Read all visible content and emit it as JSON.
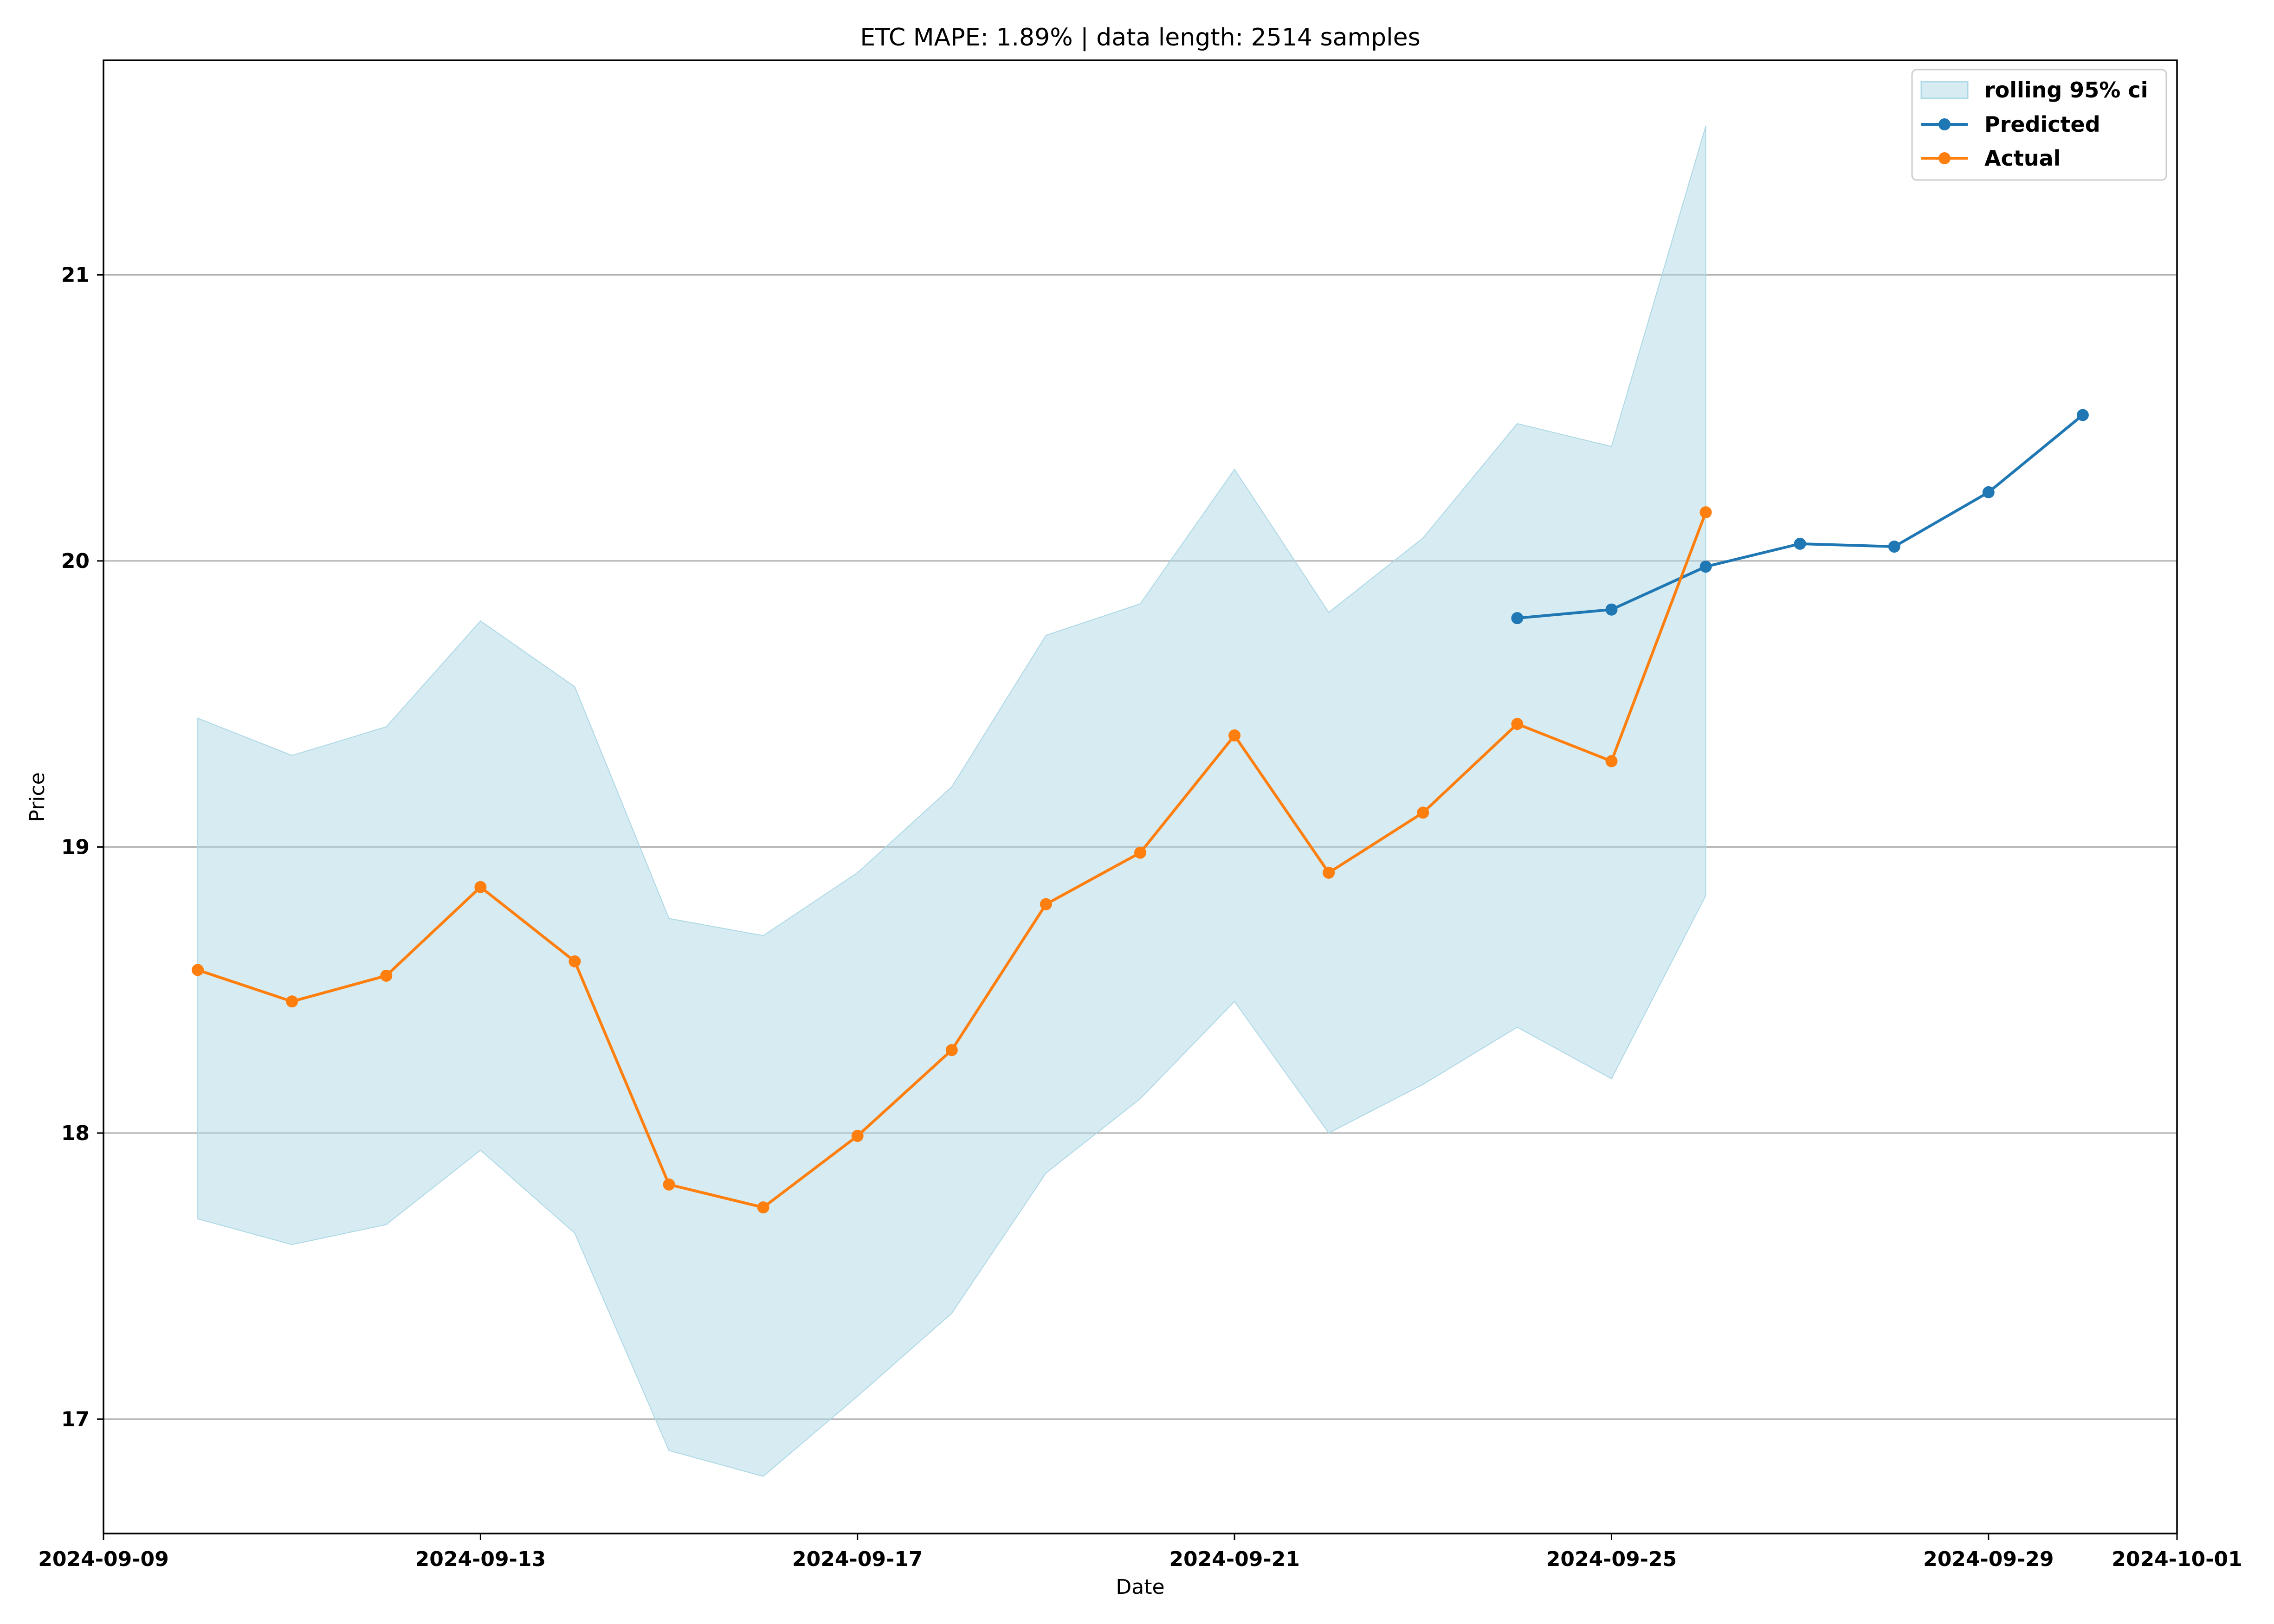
{
  "chart_data": {
    "type": "line",
    "title": "ETC MAPE: 1.89% | data length: 2514 samples",
    "xlabel": "Date",
    "ylabel": "Price",
    "xlim": [
      "2024-09-09",
      "2024-10-01"
    ],
    "ylim": [
      16.6,
      21.75
    ],
    "x_ticks": [
      "2024-09-09",
      "2024-09-13",
      "2024-09-17",
      "2024-09-21",
      "2024-09-25",
      "2024-09-29",
      "2024-10-01"
    ],
    "y_ticks": [
      17,
      18,
      19,
      20,
      21
    ],
    "grid": "horizontal",
    "legend_position": "top-right",
    "colors": {
      "ci": "#add8e6",
      "predicted": "#1f77b4",
      "actual": "#ff7f0e",
      "grid": "#b0b0b0"
    },
    "ci_band": {
      "name": "rolling 95% ci",
      "x": [
        "2024-09-10",
        "2024-09-11",
        "2024-09-12",
        "2024-09-13",
        "2024-09-14",
        "2024-09-15",
        "2024-09-16",
        "2024-09-17",
        "2024-09-18",
        "2024-09-19",
        "2024-09-20",
        "2024-09-21",
        "2024-09-22",
        "2024-09-23",
        "2024-09-24",
        "2024-09-25",
        "2024-09-26"
      ],
      "upper": [
        19.45,
        19.32,
        19.42,
        19.79,
        19.56,
        18.75,
        18.69,
        18.91,
        19.21,
        19.74,
        19.85,
        20.32,
        19.82,
        20.08,
        20.48,
        20.4,
        21.52
      ],
      "lower": [
        17.7,
        17.61,
        17.68,
        17.94,
        17.65,
        16.89,
        16.8,
        17.08,
        17.37,
        17.86,
        18.12,
        18.46,
        18.0,
        18.17,
        18.37,
        18.19,
        18.83
      ]
    },
    "series": [
      {
        "name": "Predicted",
        "x": [
          "2024-09-24",
          "2024-09-25",
          "2024-09-26",
          "2024-09-27",
          "2024-09-28",
          "2024-09-29",
          "2024-09-30"
        ],
        "values": [
          19.8,
          19.83,
          19.98,
          20.06,
          20.05,
          20.24,
          20.51
        ]
      },
      {
        "name": "Actual",
        "x": [
          "2024-09-10",
          "2024-09-11",
          "2024-09-12",
          "2024-09-13",
          "2024-09-14",
          "2024-09-15",
          "2024-09-16",
          "2024-09-17",
          "2024-09-18",
          "2024-09-19",
          "2024-09-20",
          "2024-09-21",
          "2024-09-22",
          "2024-09-23",
          "2024-09-24",
          "2024-09-25",
          "2024-09-26"
        ],
        "values": [
          18.57,
          18.46,
          18.55,
          18.86,
          18.6,
          17.82,
          17.74,
          17.99,
          18.29,
          18.8,
          18.98,
          19.39,
          18.91,
          19.12,
          19.43,
          19.3,
          20.17
        ]
      }
    ]
  }
}
